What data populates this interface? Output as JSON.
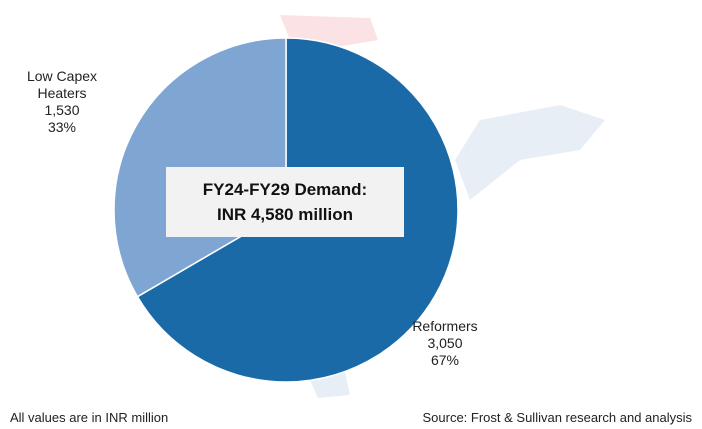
{
  "chart_data": {
    "type": "pie",
    "categories": [
      "Reformers",
      "Low Capex Heaters"
    ],
    "values": [
      3050,
      1530
    ],
    "value_labels": [
      "3,050",
      "1,530"
    ],
    "percent_labels": [
      "67%",
      "33%"
    ],
    "colors": [
      "#1b6aa8",
      "#7fa6d2"
    ],
    "center_label": [
      "FY24-FY29 Demand:",
      "INR 4,580 million"
    ],
    "footnote": "All values are in INR million",
    "source": "Source: Frost & Sullivan research and analysis"
  }
}
